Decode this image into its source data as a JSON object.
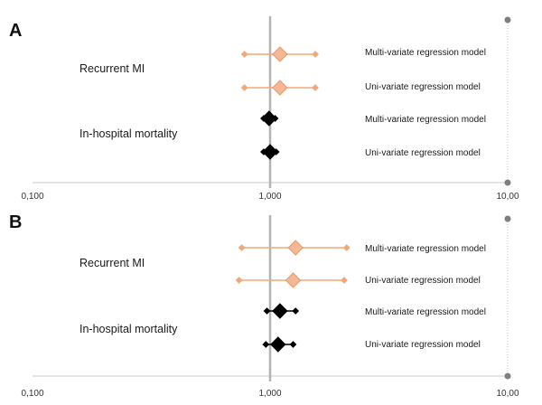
{
  "colors": {
    "recurrent_mi": "#f0a878",
    "recurrent_mi_fill": "#f5b896",
    "in_hospital_mortality": "#000000",
    "reference_line": "#b3b3b3",
    "axis": "#c8c8c8",
    "end_marker": "#7f7f7f"
  },
  "chart_data": [
    {
      "type": "forest",
      "panel": "A",
      "xscale": "log",
      "xlim": [
        0.1,
        10
      ],
      "reference": 1,
      "x_ticks": [
        "0,100",
        "1,000",
        "10,00"
      ],
      "groups": [
        {
          "label": "Recurrent MI",
          "color_key": "recurrent_mi",
          "rows": [
            {
              "model": "Multi-variate regression model",
              "estimate": 1.1,
              "lower": 0.78,
              "upper": 1.55
            },
            {
              "model": "Uni-variate regression model",
              "estimate": 1.1,
              "lower": 0.78,
              "upper": 1.55
            }
          ]
        },
        {
          "label": "In-hospital mortality",
          "color_key": "in_hospital_mortality",
          "rows": [
            {
              "model": "Multi-variate regression model",
              "estimate": 0.99,
              "lower": 0.94,
              "upper": 1.05
            },
            {
              "model": "Uni-variate regression model",
              "estimate": 1.0,
              "lower": 0.94,
              "upper": 1.06
            }
          ]
        }
      ]
    },
    {
      "type": "forest",
      "panel": "B",
      "xscale": "log",
      "xlim": [
        0.1,
        10
      ],
      "reference": 1,
      "x_ticks": [
        "0,100",
        "1,000",
        "10,00"
      ],
      "groups": [
        {
          "label": "Recurrent MI",
          "color_key": "recurrent_mi",
          "rows": [
            {
              "model": "Multi-variate regression model",
              "estimate": 1.28,
              "lower": 0.76,
              "upper": 2.1
            },
            {
              "model": "Uni-variate regression model",
              "estimate": 1.25,
              "lower": 0.74,
              "upper": 2.05
            }
          ]
        },
        {
          "label": "In-hospital mortality",
          "color_key": "in_hospital_mortality",
          "rows": [
            {
              "model": "Multi-variate regression model",
              "estimate": 1.1,
              "lower": 0.97,
              "upper": 1.28
            },
            {
              "model": "Uni-variate regression model",
              "estimate": 1.08,
              "lower": 0.96,
              "upper": 1.25
            }
          ]
        }
      ]
    }
  ]
}
